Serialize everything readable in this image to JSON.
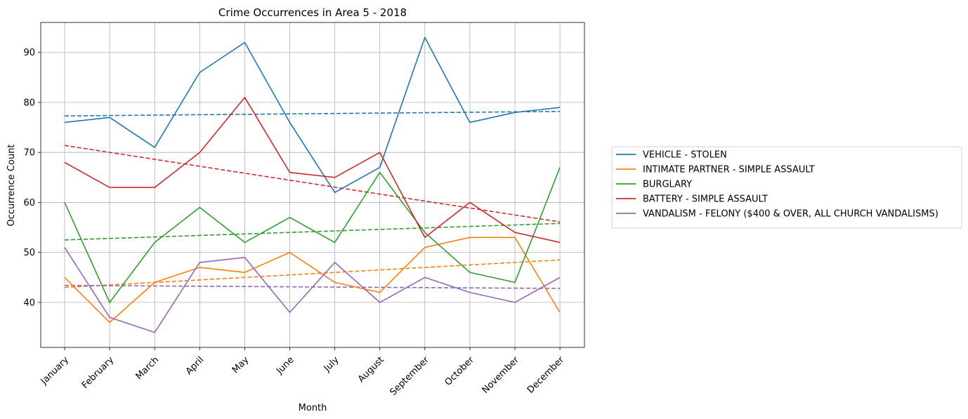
{
  "chart_data": {
    "type": "line",
    "title": "Crime Occurrences in Area 5 - 2018",
    "xlabel": "Month",
    "ylabel": "Occurrence Count",
    "categories": [
      "January",
      "February",
      "March",
      "April",
      "May",
      "June",
      "July",
      "August",
      "September",
      "October",
      "November",
      "December"
    ],
    "ylim": [
      31,
      96
    ],
    "yticks": [
      40,
      50,
      60,
      70,
      80,
      90
    ],
    "grid": true,
    "legend_position": "right, outside plot",
    "series": [
      {
        "name": "VEHICLE - STOLEN",
        "color": "#1f77b4",
        "values": [
          76,
          77,
          71,
          86,
          92,
          76,
          62,
          67,
          93,
          76,
          78,
          79
        ],
        "trend": [
          77.3,
          78.2
        ]
      },
      {
        "name": "INTIMATE PARTNER - SIMPLE ASSAULT",
        "color": "#ff7f0e",
        "values": [
          45,
          36,
          44,
          47,
          46,
          50,
          44,
          42,
          51,
          53,
          53,
          38
        ],
        "trend": [
          43.0,
          48.5
        ]
      },
      {
        "name": "BURGLARY",
        "color": "#2ca02c",
        "values": [
          60,
          40,
          52,
          59,
          52,
          57,
          52,
          66,
          54,
          46,
          44,
          67
        ],
        "trend": [
          52.5,
          55.8
        ]
      },
      {
        "name": "BATTERY - SIMPLE ASSAULT",
        "color": "#d62728",
        "values": [
          68,
          63,
          63,
          70,
          81,
          66,
          65,
          70,
          53,
          60,
          54,
          52
        ],
        "trend": [
          71.4,
          56.1
        ]
      },
      {
        "name": "VANDALISM - FELONY ($400 & OVER, ALL CHURCH VANDALISMS)",
        "color": "#9467bd",
        "values": [
          51,
          37,
          34,
          48,
          49,
          38,
          48,
          40,
          45,
          42,
          40,
          45
        ],
        "trend": [
          43.4,
          42.8
        ]
      }
    ]
  }
}
